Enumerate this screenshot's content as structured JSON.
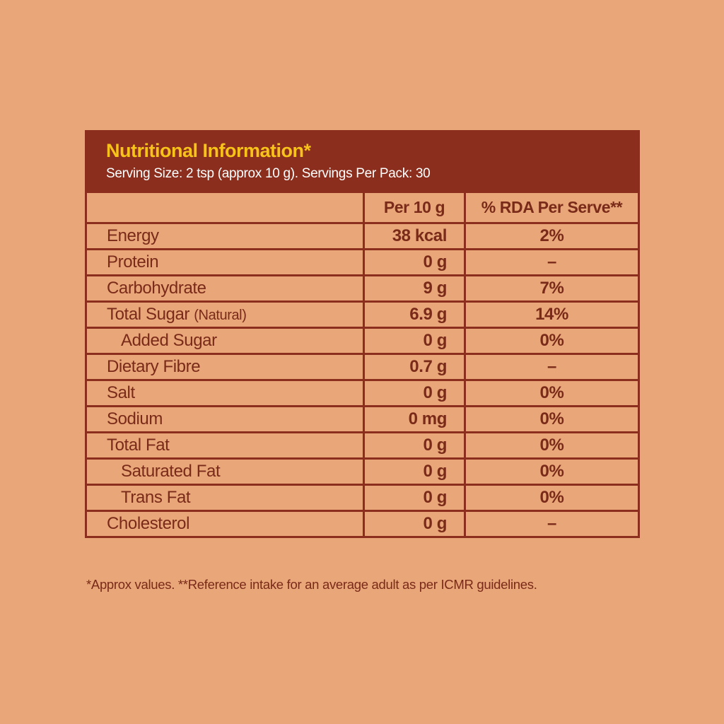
{
  "header": {
    "title": "Nutritional Information*",
    "subtitle": "Serving Size: 2 tsp (approx 10 g). Servings Per Pack: 30"
  },
  "table": {
    "columns": [
      "Per 10 g",
      "% RDA Per Serve**"
    ],
    "rows": [
      {
        "nutrient": "Energy",
        "per_10g": "38 kcal",
        "rda": "2%"
      },
      {
        "nutrient": "Protein",
        "per_10g": "0 g",
        "rda": "–"
      },
      {
        "nutrient": "Carbohydrate",
        "per_10g": "9 g",
        "rda": "7%"
      },
      {
        "nutrient": "Total Sugar",
        "note": "(Natural)",
        "per_10g": "6.9 g",
        "rda": "14%",
        "sub_rows": [
          {
            "nutrient": "Added Sugar",
            "per_10g": "0 g",
            "rda": "0%"
          }
        ]
      },
      {
        "nutrient": "Dietary Fibre",
        "per_10g": "0.7 g",
        "rda": "–"
      },
      {
        "nutrient": "Salt",
        "per_10g": "0 g",
        "rda": "0%"
      },
      {
        "nutrient": "Sodium",
        "per_10g": "0 mg",
        "rda": "0%"
      },
      {
        "nutrient": "Total Fat",
        "per_10g": "0 g",
        "rda": "0%",
        "sub_rows": [
          {
            "nutrient": "Saturated Fat",
            "per_10g": "0 g",
            "rda": "0%"
          },
          {
            "nutrient": "Trans Fat",
            "per_10g": "0 g",
            "rda": "0%"
          }
        ]
      },
      {
        "nutrient": "Cholesterol",
        "per_10g": "0 g",
        "rda": "–"
      }
    ]
  },
  "footnote": "*Approx values. **Reference intake for an average adult as per ICMR guidelines."
}
